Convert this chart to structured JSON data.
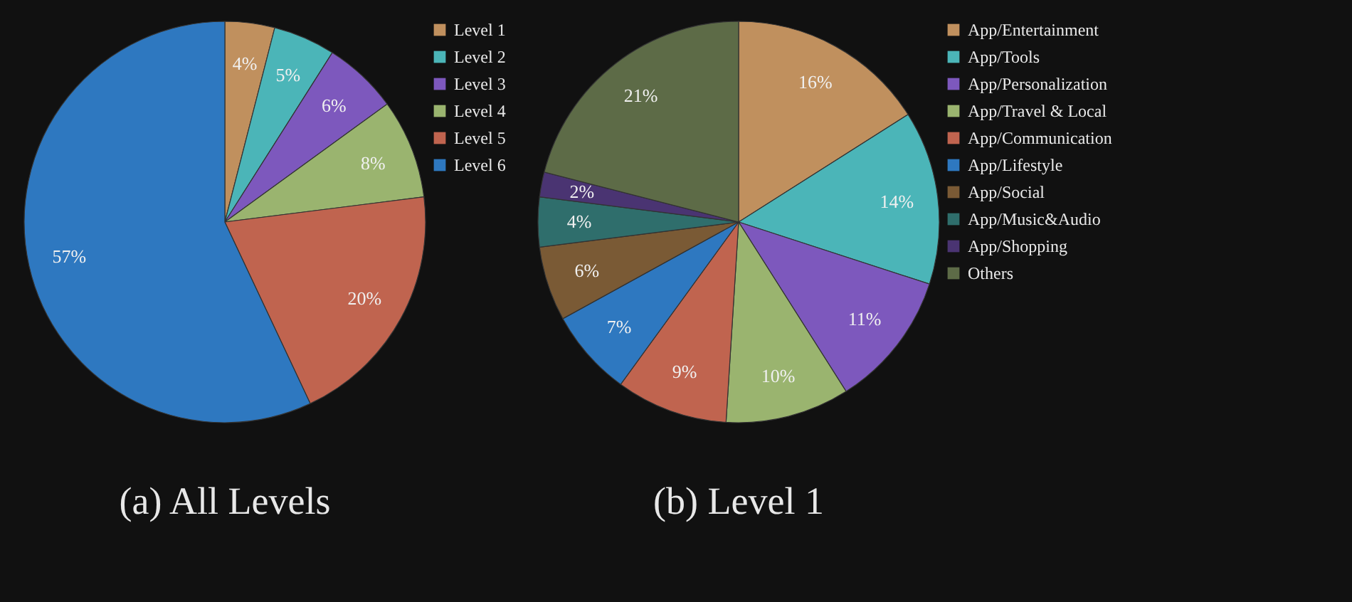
{
  "chart_data": [
    {
      "type": "pie",
      "title": "(a) All Levels",
      "categories": [
        "Level 1",
        "Level 2",
        "Level 3",
        "Level 4",
        "Level 5",
        "Level 6"
      ],
      "values": [
        4,
        5,
        6,
        8,
        20,
        57
      ],
      "colors": [
        "#c0905e",
        "#4bb5b8",
        "#7d58bd",
        "#9ab46f",
        "#c0644f",
        "#2e78c0"
      ],
      "value_labels": [
        "4%",
        "5%",
        "6%",
        "8%",
        "20%",
        "57%"
      ],
      "legend": "right"
    },
    {
      "type": "pie",
      "title": "(b) Level 1",
      "categories": [
        "App/Entertainment",
        "App/Tools",
        "App/Personalization",
        "App/Travel & Local",
        "App/Communication",
        "App/Lifestyle",
        "App/Social",
        "App/Music&Audio",
        "App/Shopping",
        "Others"
      ],
      "values": [
        16,
        14,
        11,
        10,
        9,
        7,
        6,
        4,
        2,
        21
      ],
      "colors": [
        "#c0905e",
        "#4bb5b8",
        "#7d58bd",
        "#9ab46f",
        "#c0644f",
        "#2e78c0",
        "#7a5a35",
        "#2f6e6c",
        "#4a3472",
        "#5d6b47"
      ],
      "value_labels": [
        "16%",
        "14%",
        "11%",
        "10%",
        "9%",
        "7%",
        "6%",
        "4%",
        "2%",
        "21%"
      ],
      "legend": "right"
    }
  ]
}
